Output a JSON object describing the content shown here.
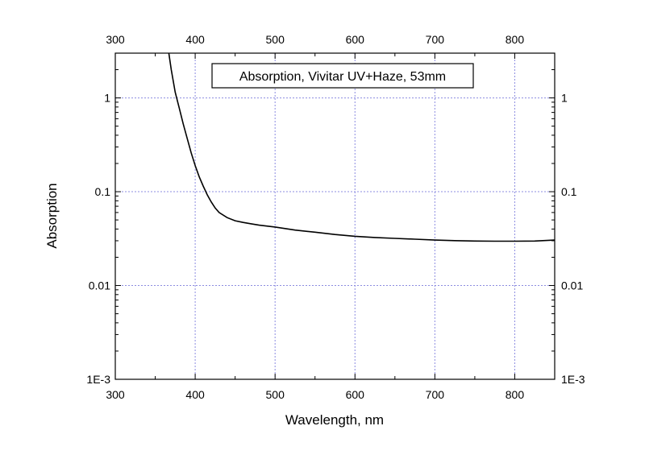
{
  "chart_data": {
    "type": "line",
    "title": "Absorption, Vivitar UV+Haze, 53mm",
    "xlabel": "Wavelength, nm",
    "ylabel": "Absorption",
    "xlim": [
      300,
      850
    ],
    "ylim": [
      0.001,
      3
    ],
    "y_scale": "log",
    "x_ticks": [
      300,
      400,
      500,
      600,
      700,
      800
    ],
    "x_tick_labels": [
      "300",
      "400",
      "500",
      "600",
      "700",
      "800"
    ],
    "y_ticks": [
      0.001,
      0.01,
      0.1,
      1
    ],
    "y_tick_labels": [
      "1E-3",
      "0.01",
      "0.1",
      "1"
    ],
    "mirror_axes": true,
    "grid": true,
    "legend_position": "top-center",
    "series": [
      {
        "x": [
          367,
          370,
          375,
          380,
          385,
          390,
          395,
          400,
          405,
          410,
          415,
          420,
          425,
          430,
          440,
          450,
          460,
          470,
          480,
          500,
          525,
          550,
          575,
          600,
          625,
          650,
          675,
          700,
          725,
          750,
          775,
          800,
          825,
          850
        ],
        "y": [
          3.0,
          2.0,
          1.15,
          0.78,
          0.53,
          0.37,
          0.26,
          0.19,
          0.145,
          0.115,
          0.093,
          0.078,
          0.067,
          0.06,
          0.053,
          0.049,
          0.047,
          0.0455,
          0.044,
          0.042,
          0.039,
          0.037,
          0.035,
          0.0335,
          0.0325,
          0.0318,
          0.0312,
          0.0305,
          0.0301,
          0.0298,
          0.0297,
          0.0297,
          0.0298,
          0.0305
        ]
      }
    ]
  }
}
